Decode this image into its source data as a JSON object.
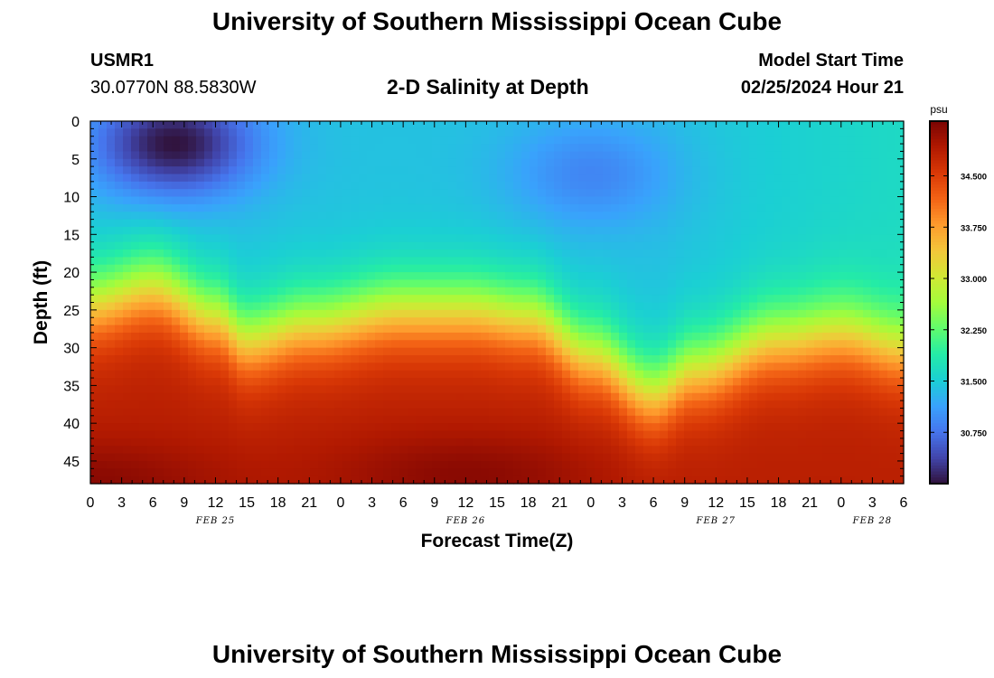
{
  "header": {
    "title": "University of Southern Mississippi Ocean Cube",
    "station_id": "USMR1",
    "coordinates": "30.0770N  88.5830W",
    "subtitle": "2-D Salinity at Depth",
    "model_start_label": "Model Start Time",
    "model_start_value": "02/25/2024 Hour 21"
  },
  "footer": {
    "title": "University of Southern Mississippi Ocean Cube"
  },
  "chart_data": {
    "type": "heatmap",
    "title": "2-D Salinity at Depth",
    "xlabel": "Forecast Time(Z)",
    "ylabel": "Depth (ft)",
    "x_unit": "hours from FEB 25 00Z",
    "xlim": [
      0,
      78
    ],
    "ylim": [
      0,
      48
    ],
    "x_ticks": [
      0,
      3,
      6,
      9,
      12,
      15,
      18,
      21,
      24,
      27,
      30,
      33,
      36,
      39,
      42,
      45,
      48,
      51,
      54,
      57,
      60,
      63,
      66,
      69,
      72,
      75,
      78
    ],
    "x_tick_labels": [
      "0",
      "3",
      "6",
      "9",
      "12",
      "15",
      "18",
      "21",
      "0",
      "3",
      "6",
      "9",
      "12",
      "15",
      "18",
      "21",
      "0",
      "3",
      "6",
      "9",
      "12",
      "15",
      "18",
      "21",
      "0",
      "3",
      "6"
    ],
    "date_labels": [
      {
        "x": 12,
        "label": "FEB 25"
      },
      {
        "x": 36,
        "label": "FEB 26"
      },
      {
        "x": 60,
        "label": "FEB 27"
      },
      {
        "x": 75,
        "label": "FEB 28"
      }
    ],
    "y_ticks": [
      0,
      5,
      10,
      15,
      20,
      25,
      30,
      35,
      40,
      45
    ],
    "y_tick_labels": [
      "0",
      "5",
      "10",
      "15",
      "20",
      "25",
      "30",
      "35",
      "40",
      "45"
    ],
    "colorbar": {
      "unit": "psu",
      "range": [
        30.0,
        35.3
      ],
      "ticks": [
        30.75,
        31.5,
        32.25,
        33.0,
        33.75,
        34.5
      ],
      "tick_labels": [
        "30.750",
        "31.500",
        "32.250",
        "33.000",
        "33.750",
        "34.500"
      ],
      "colormap": [
        "#30123b",
        "#4145ab",
        "#4675ed",
        "#39a2fc",
        "#1bcfd4",
        "#24eca6",
        "#61fc6c",
        "#a4fc3b",
        "#d1e834",
        "#f3c63a",
        "#fe9b2d",
        "#f36315",
        "#d93806",
        "#b11901",
        "#7a0403"
      ]
    },
    "salinity_model": {
      "surface_base_psu": 31.4,
      "deep_psu": 34.85,
      "halocline_depth_ft_by_hour": [
        [
          0,
          24
        ],
        [
          6,
          22
        ],
        [
          12,
          26
        ],
        [
          15,
          29
        ],
        [
          21,
          27
        ],
        [
          30,
          25
        ],
        [
          36,
          25
        ],
        [
          42,
          26
        ],
        [
          48,
          31
        ],
        [
          54,
          36
        ],
        [
          58,
          33
        ],
        [
          66,
          29
        ],
        [
          72,
          28
        ],
        [
          78,
          30
        ]
      ],
      "fresh_cores": [
        {
          "hour": 8,
          "depth_ft": 3,
          "min_psu": 30.0
        },
        {
          "hour": 48,
          "depth_ft": 7,
          "min_psu": 30.9
        }
      ],
      "deep_maxima": [
        {
          "hour": 0,
          "depth_ft": 48,
          "max_psu": 35.2
        },
        {
          "hour": 36,
          "depth_ft": 47,
          "max_psu": 35.2
        }
      ]
    }
  }
}
